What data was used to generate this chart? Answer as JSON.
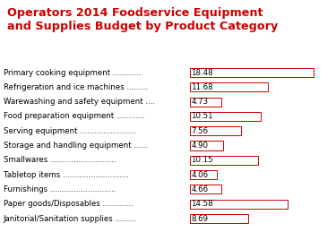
{
  "title_line1": "Operators 2014 Foodservice Equipment",
  "title_line2": "and Supplies Budget by Product Category",
  "title_color": "#cc0000",
  "categories": [
    "Primary cooking equipment",
    "Refrigeration and ice machines",
    "Warewashing and safety equipment",
    "Food preparation equipment",
    "Serving equipment",
    "Storage and handling equipment",
    "Smallwares",
    "Tabletop items",
    "Furnishings",
    "Paper goods/Disposables",
    "Janitorial/Sanitation supplies"
  ],
  "dots": [
    "............",
    ".........",
    "....",
    "............",
    "........................",
    "......",
    "............................",
    "............................",
    "............................",
    ".............",
    "........."
  ],
  "values": [
    18.48,
    11.68,
    4.73,
    10.51,
    7.56,
    4.9,
    10.15,
    4.06,
    4.66,
    14.58,
    8.69
  ],
  "bar_color": "#ffffff",
  "bar_edge_color": "#cc0000",
  "text_color": "#000000",
  "background_color": "#ffffff",
  "bar_max": 20.5,
  "label_fontsize": 6.2,
  "value_fontsize": 6.2,
  "title_fontsize": 9.2
}
